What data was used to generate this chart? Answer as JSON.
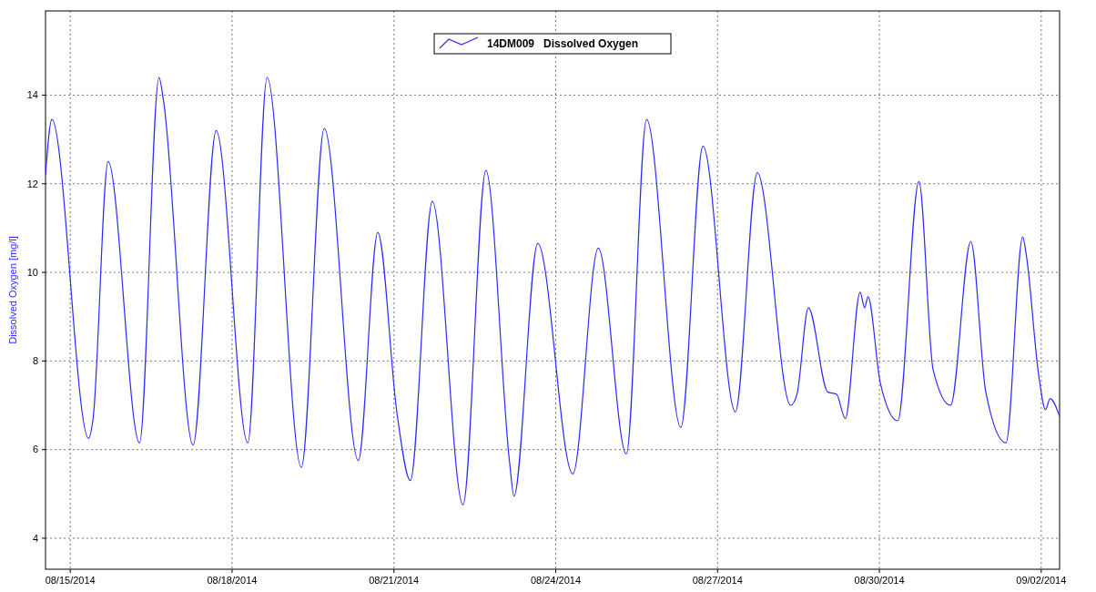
{
  "chart_data": {
    "type": "line",
    "ylabel": "Dissolved Oxygen [mg/l]",
    "legend": "top",
    "grid": true,
    "marker": "none",
    "line_style": "solid",
    "xlim": [
      "2014-08-14T13:00",
      "2014-09-02T08:10"
    ],
    "xticks": [
      {
        "value": "2014-08-15",
        "label": "08/15/2014"
      },
      {
        "value": "2014-08-18",
        "label": "08/18/2014"
      },
      {
        "value": "2014-08-21",
        "label": "08/21/2014"
      },
      {
        "value": "2014-08-24",
        "label": "08/24/2014"
      },
      {
        "value": "2014-08-27",
        "label": "08/27/2014"
      },
      {
        "value": "2014-08-30",
        "label": "08/30/2014"
      },
      {
        "value": "2014-09-02",
        "label": "09/02/2014"
      }
    ],
    "ylim": [
      3.3,
      15.9
    ],
    "yticks": [
      4,
      6,
      8,
      10,
      12,
      14
    ],
    "x": [
      "2014-08-14T13:00",
      "2014-08-14T15:50",
      "2014-08-15T08:10",
      "2014-08-15T10:10",
      "2014-08-15T16:50",
      "2014-08-16T06:50",
      "2014-08-16T15:30",
      "2014-08-16T17:25",
      "2014-08-17T06:40",
      "2014-08-17T16:55",
      "2014-08-18T07:00",
      "2014-08-18T15:35",
      "2014-08-19T06:50",
      "2014-08-19T17:00",
      "2014-08-20T08:10",
      "2014-08-20T16:50",
      "2014-08-21T01:25",
      "2014-08-21T07:20",
      "2014-08-21T17:05",
      "2014-08-22T06:45",
      "2014-08-22T16:55",
      "2014-08-23T03:30",
      "2014-08-23T05:25",
      "2014-08-23T16:00",
      "2014-08-24T07:35",
      "2014-08-24T18:55",
      "2014-08-25T07:25",
      "2014-08-25T16:25",
      "2014-08-26T07:40",
      "2014-08-26T17:30",
      "2014-08-27T07:55",
      "2014-08-27T17:40",
      "2014-08-28T08:30",
      "2014-08-28T11:20",
      "2014-08-28T16:25",
      "2014-08-29T01:00",
      "2014-08-29T04:55",
      "2014-08-29T08:50",
      "2014-08-29T15:25",
      "2014-08-29T17:25",
      "2014-08-29T18:55",
      "2014-08-30T00:25",
      "2014-08-30T08:10",
      "2014-08-30T17:35",
      "2014-08-30T23:55",
      "2014-08-31T07:40",
      "2014-08-31T16:40",
      "2014-08-31T23:20",
      "2014-09-01T08:20",
      "2014-09-01T15:45",
      "2014-09-01T17:20",
      "2014-09-01T22:50",
      "2014-09-02T01:55",
      "2014-09-02T03:55",
      "2014-09-02T08:10"
    ],
    "series": [
      {
        "name": "14DM009   Dissolved Oxygen",
        "color": "#2b2bff",
        "values": [
          12.2,
          13.45,
          6.25,
          6.7,
          12.5,
          6.15,
          14.4,
          13.9,
          6.1,
          13.2,
          6.15,
          14.4,
          5.6,
          13.25,
          5.75,
          10.9,
          6.8,
          5.3,
          11.6,
          4.75,
          12.3,
          5.7,
          4.95,
          10.65,
          5.45,
          10.55,
          5.9,
          13.45,
          6.5,
          12.85,
          6.85,
          12.25,
          7.0,
          7.25,
          9.2,
          7.3,
          7.25,
          6.7,
          9.55,
          9.2,
          9.45,
          7.5,
          6.65,
          12.05,
          7.8,
          7.0,
          10.7,
          7.3,
          6.15,
          10.8,
          10.4,
          7.7,
          6.9,
          7.15,
          6.75
        ]
      }
    ]
  }
}
